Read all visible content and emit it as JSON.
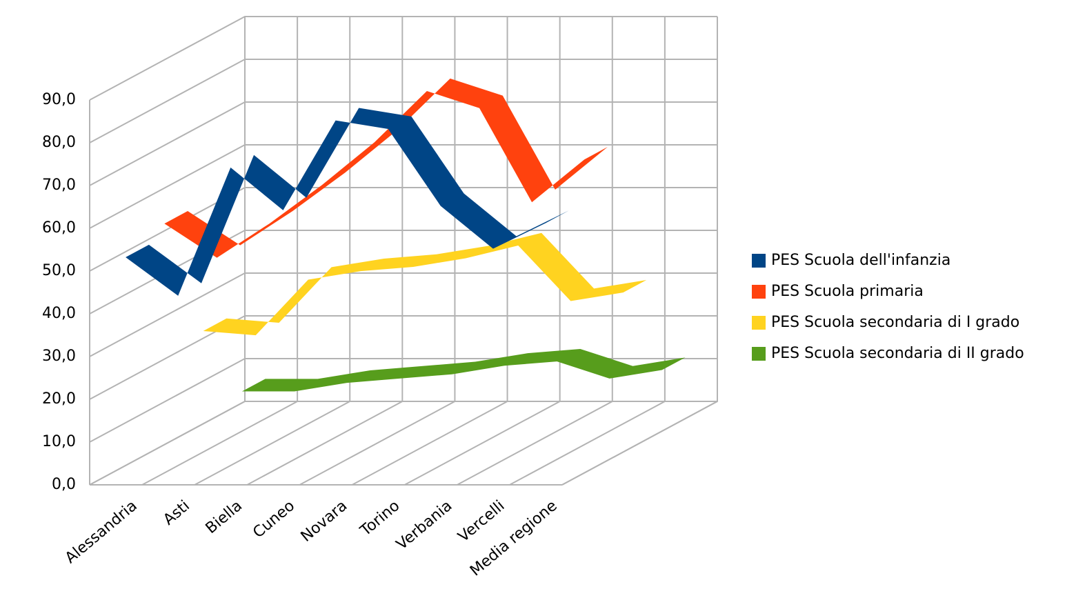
{
  "chart_data": {
    "type": "line3d",
    "categories": [
      "Alessandria",
      "Asti",
      "Biella",
      "Cuneo",
      "Novara",
      "Torino",
      "Verbania",
      "Vercelli",
      "Media regione"
    ],
    "series": [
      {
        "name": "PES Scuola dell'infanzia",
        "color": "#004586",
        "values": [
          52,
          43,
          73,
          63,
          84,
          82,
          64,
          54,
          60
        ]
      },
      {
        "name": "PES Scuola primaria",
        "color": "#ff420e",
        "values": [
          55,
          47,
          55,
          64,
          74,
          86,
          82,
          60,
          70
        ]
      },
      {
        "name": "PES Scuola secondaria di I grado",
        "color": "#ffd320",
        "values": [
          25,
          24,
          37,
          39,
          40,
          42,
          45,
          32,
          34
        ]
      },
      {
        "name": "PES Scuola secondaria di II grado",
        "color": "#579d1c",
        "values": [
          6,
          6,
          8,
          9,
          10,
          12,
          13,
          9,
          11
        ]
      }
    ],
    "ylim": [
      0,
      90
    ],
    "yticks": [
      {
        "value": 0,
        "label": "0,0"
      },
      {
        "value": 10,
        "label": "10,0"
      },
      {
        "value": 20,
        "label": "20,0"
      },
      {
        "value": 30,
        "label": "30,0"
      },
      {
        "value": 40,
        "label": "40,0"
      },
      {
        "value": 50,
        "label": "50,0"
      },
      {
        "value": 60,
        "label": "60,0"
      },
      {
        "value": 70,
        "label": "70,0"
      },
      {
        "value": 80,
        "label": "80,0"
      },
      {
        "value": 90,
        "label": "90,0"
      }
    ],
    "grid": true,
    "legend": "right"
  }
}
